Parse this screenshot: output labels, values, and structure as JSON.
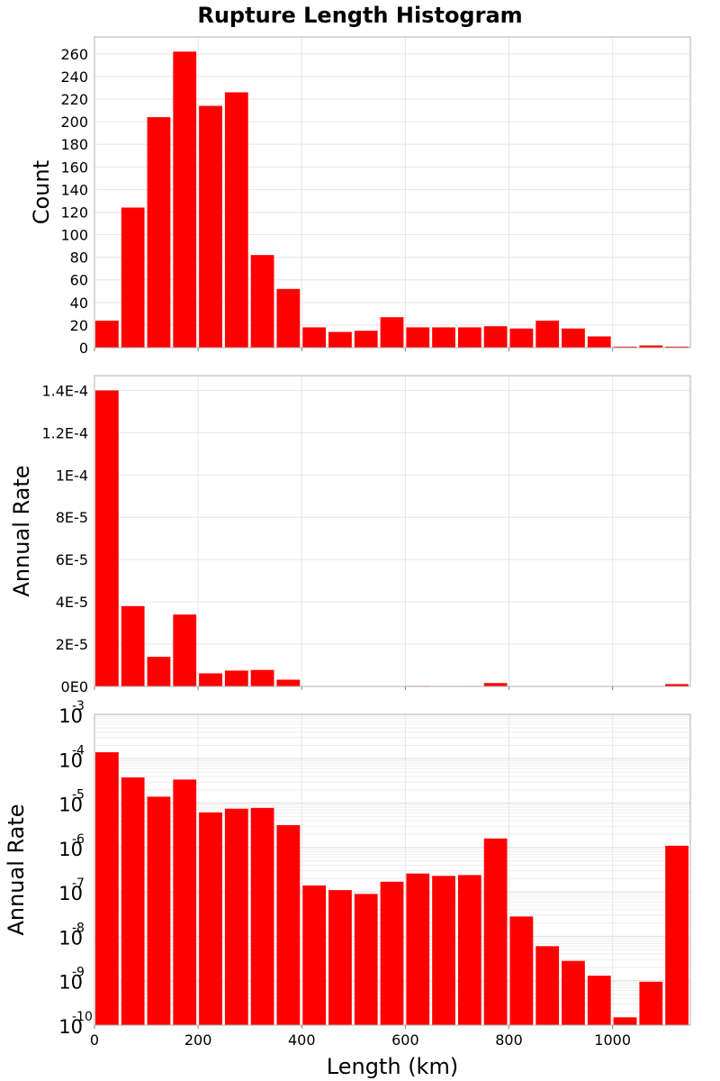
{
  "title": "Rupture Length Histogram",
  "chart_data": {
    "type": "bar",
    "title": "Rupture Length Histogram",
    "xlabel": "Length (km)",
    "xlim": [
      0,
      1150
    ],
    "x_ticks": [
      "0",
      "200",
      "400",
      "600",
      "800",
      "1000"
    ],
    "bin_width": 50,
    "bin_starts": [
      0,
      50,
      100,
      150,
      200,
      250,
      300,
      350,
      400,
      450,
      500,
      550,
      600,
      650,
      700,
      750,
      800,
      850,
      900,
      950,
      1000,
      1050,
      1100
    ],
    "bar_color": "#ff0000",
    "panels": [
      {
        "ylabel": "Count",
        "scale": "linear",
        "ylim": [
          0,
          275
        ],
        "y_ticks": [
          "0",
          "20",
          "40",
          "60",
          "80",
          "100",
          "120",
          "140",
          "160",
          "180",
          "200",
          "220",
          "240",
          "260"
        ],
        "values": [
          24,
          124,
          204,
          262,
          214,
          226,
          82,
          52,
          18,
          14,
          15,
          27,
          18,
          18,
          18,
          19,
          17,
          24,
          17,
          10,
          1,
          2,
          1
        ]
      },
      {
        "ylabel": "Annual Rate",
        "scale": "linear",
        "ylim": [
          0,
          0.000147
        ],
        "y_ticks": [
          "0E0",
          "2E-5",
          "4E-5",
          "6E-5",
          "8E-5",
          "1E-4",
          "1.2E-4",
          "1.4E-4"
        ],
        "values": [
          0.00014,
          3.8e-05,
          1.4e-05,
          3.4e-05,
          6.2e-06,
          7.5e-06,
          7.8e-06,
          3.2e-06,
          1.4e-07,
          1.1e-07,
          9e-08,
          1.7e-07,
          2.6e-07,
          2.3e-07,
          2.4e-07,
          1.6e-06,
          2.8e-08,
          6e-09,
          2.8e-09,
          1.3e-09,
          1.5e-10,
          9.5e-10,
          1.1e-06
        ]
      },
      {
        "ylabel": "Annual Rate",
        "scale": "log",
        "ylim": [
          1e-10,
          0.001
        ],
        "y_tick_exponents": [
          "-10",
          "-9",
          "-8",
          "-7",
          "-6",
          "-5",
          "-4",
          "-3"
        ],
        "values": [
          0.00014,
          3.8e-05,
          1.4e-05,
          3.4e-05,
          6.2e-06,
          7.5e-06,
          7.8e-06,
          3.2e-06,
          1.4e-07,
          1.1e-07,
          9e-08,
          1.7e-07,
          2.6e-07,
          2.3e-07,
          2.4e-07,
          1.6e-06,
          2.8e-08,
          6e-09,
          2.8e-09,
          1.3e-09,
          1.5e-10,
          9.5e-10,
          1.1e-06
        ]
      }
    ]
  }
}
